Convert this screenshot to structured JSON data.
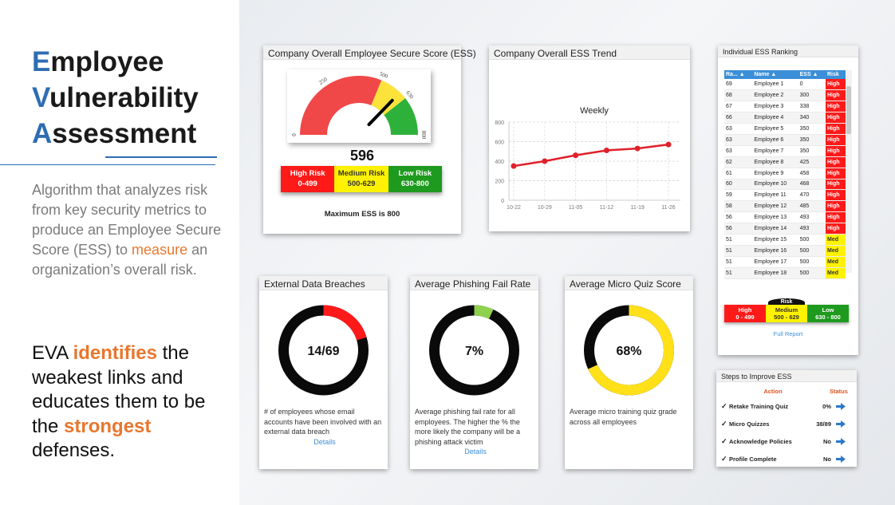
{
  "slide": {
    "title_lines": [
      {
        "cap": "E",
        "rest": "mployee"
      },
      {
        "cap": "V",
        "rest": "ulnerability"
      },
      {
        "cap": "A",
        "rest": "ssessment"
      }
    ],
    "description_pre": "Algorithm that analyzes risk from key security metrics to produce an Employee Secure Score (ESS) to ",
    "description_accent": "measure",
    "description_post": " an organization’s overall risk.",
    "tagline": {
      "p1": "EVA ",
      "hl1": "identifies",
      "p2": " the weakest links and educates them to be the ",
      "hl2": "strongest",
      "p3": " defenses."
    },
    "colors": {
      "brand_blue": "#2e6db4",
      "accent_orange": "#e8772e"
    }
  },
  "ess_card": {
    "title": "Company Overall Employee Secure Score (ESS)",
    "score": "596",
    "gauge_ticks": [
      "0",
      "250",
      "500",
      "630",
      "800"
    ],
    "gauge_min": 0,
    "gauge_max": 800,
    "needle_value": 596,
    "legend": [
      {
        "label": "High Risk",
        "range": "0-499"
      },
      {
        "label": "Medium Risk",
        "range": "500-629"
      },
      {
        "label": "Low Risk",
        "range": "630-800"
      }
    ],
    "max_note": "Maximum ESS is 800"
  },
  "trend_card": {
    "title": "Company Overall ESS Trend",
    "chart_data": {
      "type": "line",
      "title": "Weekly",
      "categories": [
        "10-22",
        "10-29",
        "11-05",
        "11-12",
        "11-19",
        "11-26"
      ],
      "values": [
        350,
        400,
        460,
        510,
        530,
        570
      ],
      "y_ticks": [
        "0",
        "200",
        "400",
        "600",
        "800"
      ],
      "ylim": [
        0,
        800
      ],
      "xlabel": "",
      "ylabel": "",
      "series_color": "#e0202a"
    }
  },
  "ranking_card": {
    "title": "Individual ESS Ranking",
    "columns": [
      "Ra...",
      "Name",
      "ESS",
      "Risk"
    ],
    "rows": [
      [
        "69",
        "Employee 1",
        "0",
        "High"
      ],
      [
        "68",
        "Employee 2",
        "300",
        "High"
      ],
      [
        "67",
        "Employee 3",
        "338",
        "High"
      ],
      [
        "66",
        "Employee 4",
        "340",
        "High"
      ],
      [
        "63",
        "Employee 5",
        "350",
        "High"
      ],
      [
        "63",
        "Employee 6",
        "350",
        "High"
      ],
      [
        "63",
        "Employee 7",
        "350",
        "High"
      ],
      [
        "62",
        "Employee 8",
        "425",
        "High"
      ],
      [
        "61",
        "Employee 9",
        "458",
        "High"
      ],
      [
        "60",
        "Employee 10",
        "468",
        "High"
      ],
      [
        "59",
        "Employee 11",
        "470",
        "High"
      ],
      [
        "58",
        "Employee 12",
        "485",
        "High"
      ],
      [
        "56",
        "Employee 13",
        "493",
        "High"
      ],
      [
        "56",
        "Employee 14",
        "493",
        "High"
      ],
      [
        "51",
        "Employee 15",
        "500",
        "Med"
      ],
      [
        "51",
        "Employee 16",
        "500",
        "Med"
      ],
      [
        "51",
        "Employee 17",
        "500",
        "Med"
      ],
      [
        "51",
        "Employee 18",
        "500",
        "Med"
      ]
    ],
    "legend_caption": "Risk",
    "legend": [
      {
        "label": "High",
        "range": "0 - 499"
      },
      {
        "label": "Medium",
        "range": "500 - 629"
      },
      {
        "label": "Low",
        "range": "630 - 800"
      }
    ],
    "full_report": "Full Report"
  },
  "breaches_card": {
    "title": "External Data Breaches",
    "value_text": "14/69",
    "fraction": 0.203,
    "color": "#ff1a1a",
    "description": "# of employees whose email accounts have been involved with an external data breach",
    "details": "Details"
  },
  "phishing_card": {
    "title": "Average Phishing Fail Rate",
    "value_text": "7%",
    "fraction": 0.07,
    "color": "#8fd14f",
    "description": "Average phishing fail rate for all employees. The higher the % the more likely the company will be a phishing attack victim",
    "details": "Details"
  },
  "quiz_card": {
    "title": "Average Micro Quiz Score",
    "value_text": "68%",
    "fraction": 0.68,
    "color": "#ffe019",
    "description": "Average micro training quiz grade across all employees"
  },
  "steps_card": {
    "title": "Steps to Improve ESS",
    "col_action": "Action",
    "col_status": "Status",
    "items": [
      {
        "action": "Retake Training Quiz",
        "status": "0%"
      },
      {
        "action": "Micro Quizzes",
        "status": "38/89"
      },
      {
        "action": "Acknowledge Policies",
        "status": "No"
      },
      {
        "action": "Profile Complete",
        "status": "No"
      }
    ]
  }
}
